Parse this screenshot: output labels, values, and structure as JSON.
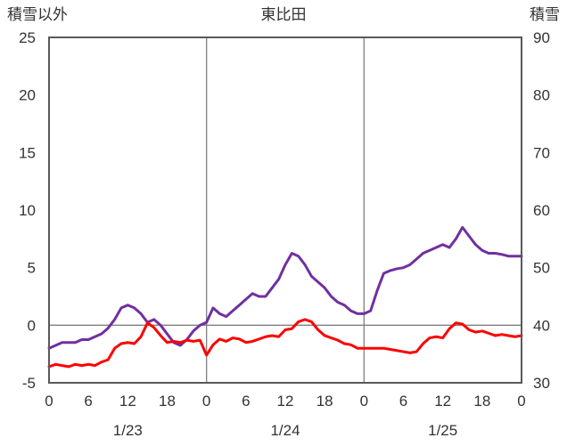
{
  "chart_data": {
    "type": "line",
    "title": "東比田",
    "left_axis": {
      "label": "積雪以外",
      "range": [
        -5,
        25
      ],
      "ticks": [
        25,
        20,
        15,
        10,
        5,
        0,
        -5
      ]
    },
    "right_axis": {
      "label": "積雪",
      "range": [
        30,
        90
      ],
      "ticks": [
        90,
        80,
        70,
        60,
        50,
        40,
        30
      ]
    },
    "x_range": [
      0,
      72
    ],
    "x_ticks": [
      {
        "hour": 0,
        "label": "0"
      },
      {
        "hour": 6,
        "label": "6"
      },
      {
        "hour": 12,
        "label": "12"
      },
      {
        "hour": 18,
        "label": "18"
      },
      {
        "hour": 24,
        "label": "0"
      },
      {
        "hour": 30,
        "label": "6"
      },
      {
        "hour": 36,
        "label": "12"
      },
      {
        "hour": 42,
        "label": "18"
      },
      {
        "hour": 48,
        "label": "0"
      },
      {
        "hour": 54,
        "label": "6"
      },
      {
        "hour": 60,
        "label": "12"
      },
      {
        "hour": 66,
        "label": "18"
      },
      {
        "hour": 72,
        "label": "0"
      }
    ],
    "date_labels": [
      {
        "hour": 12,
        "label": "1/23"
      },
      {
        "hour": 36,
        "label": "1/24"
      },
      {
        "hour": 60,
        "label": "1/25"
      }
    ],
    "grid": {
      "vertical_hours": [
        24,
        48
      ],
      "horizontal_left_values": [
        0
      ]
    },
    "series": [
      {
        "name": "積雪",
        "axis": "right",
        "color": "#7030A0",
        "data_name": "series-line-snow",
        "values": [
          36,
          36.5,
          37,
          37,
          37,
          37.5,
          37.5,
          38,
          38.5,
          39.5,
          41,
          43,
          43.5,
          43,
          42,
          40.5,
          41,
          40,
          38.5,
          37,
          36.5,
          37.5,
          39,
          40,
          40.5,
          43,
          42,
          41.5,
          42.5,
          43.5,
          44.5,
          45.5,
          45,
          45,
          46.5,
          48,
          50.5,
          52.5,
          52,
          50.5,
          48.5,
          47.5,
          46.5,
          45,
          44,
          43.5,
          42.5,
          42,
          42,
          42.5,
          46,
          49,
          49.5,
          49.8,
          50,
          50.5,
          51.5,
          52.5,
          53,
          53.5,
          54,
          53.5,
          55,
          57,
          55.5,
          54,
          53,
          52.5,
          52.5,
          52.3,
          52,
          52,
          52
        ]
      },
      {
        "name": "積雪以外",
        "axis": "left",
        "color": "#FF0000",
        "data_name": "series-line-non-snow",
        "values": [
          -3.6,
          -3.4,
          -3.5,
          -3.6,
          -3.4,
          -3.5,
          -3.4,
          -3.5,
          -3.2,
          -3.0,
          -2.0,
          -1.6,
          -1.5,
          -1.6,
          -1.0,
          0.2,
          -0.2,
          -0.9,
          -1.5,
          -1.4,
          -1.5,
          -1.3,
          -1.4,
          -1.3,
          -2.6,
          -1.7,
          -1.2,
          -1.4,
          -1.1,
          -1.2,
          -1.5,
          -1.4,
          -1.2,
          -1.0,
          -0.9,
          -1.0,
          -0.4,
          -0.3,
          0.3,
          0.5,
          0.3,
          -0.4,
          -0.9,
          -1.1,
          -1.3,
          -1.6,
          -1.7,
          -2.0,
          -2.0,
          -2.0,
          -2.0,
          -2.0,
          -2.1,
          -2.2,
          -2.3,
          -2.4,
          -2.3,
          -1.6,
          -1.1,
          -1.0,
          -1.1,
          -0.3,
          0.2,
          0.1,
          -0.4,
          -0.6,
          -0.5,
          -0.7,
          -0.9,
          -0.8,
          -0.9,
          -1.0,
          -0.9
        ]
      }
    ],
    "style_colors": {
      "border": "#595959",
      "grid": "#808080",
      "text": "#333333"
    },
    "legend": "none"
  }
}
